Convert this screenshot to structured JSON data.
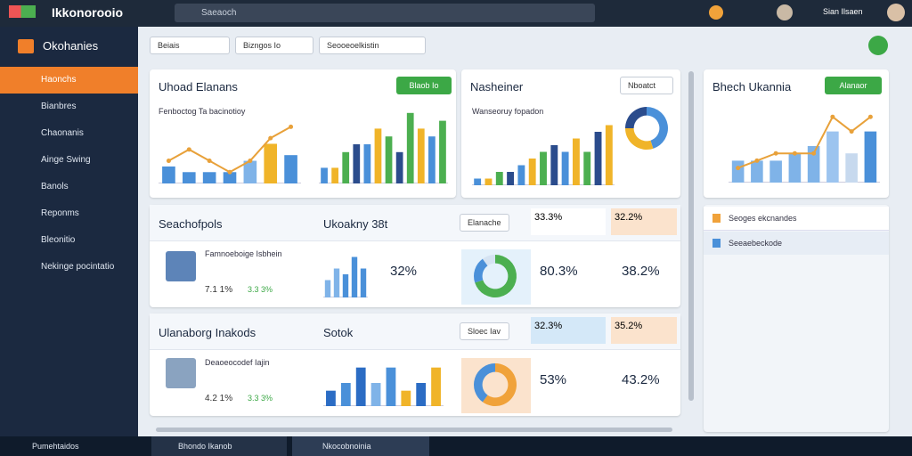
{
  "header": {
    "logo": "Ikkonorooio",
    "search": "Saeaoch",
    "user": "Sian Ilsaen"
  },
  "sidebar": {
    "title": "Okohanies",
    "items": [
      "Haonchs",
      "Bianbres",
      "Chaonanis",
      "Ainge Swing",
      "Banols",
      "Reponms",
      "Bleonitio",
      "Nekinge pocintatio"
    ]
  },
  "filters": [
    "Beiais",
    "Bizngos Io",
    "Seooeoelkistin"
  ],
  "cards": [
    {
      "title": "Uhoad Elanans",
      "button": "Blaob Io",
      "subtitle": "Fenboctog Ta bacinotioy",
      "chart": {
        "type": "bar",
        "ylim": [
          0,
          11
        ],
        "values": [
          3,
          2,
          2,
          2,
          4,
          7,
          5
        ],
        "colors": [
          "#4a90d9",
          "#4a90d9",
          "#4a90d9",
          "#4a90d9",
          "#7fb3e8",
          "#f0b429",
          "#4a90d9"
        ],
        "line": {
          "color": "#e8a13a",
          "values": [
            4,
            6,
            4,
            2,
            4,
            8,
            10
          ]
        }
      },
      "chart2": {
        "type": "bar",
        "ylim": [
          0,
          10
        ],
        "values": [
          2,
          2,
          4,
          5,
          5,
          7,
          6,
          4,
          9,
          7,
          6,
          8
        ],
        "colors": [
          "#4a90d9",
          "#f0b429",
          "#4caf50",
          "#2b4c8c",
          "#4a90d9",
          "#f0b429",
          "#4caf50",
          "#2b4c8c",
          "#4caf50",
          "#f0b429",
          "#4a90d9",
          "#4caf50"
        ]
      }
    },
    {
      "title": "Nasheiner",
      "button": "Nboatct",
      "subtitle": "Wanseoruy fopadon",
      "chart": {
        "type": "bar",
        "ylim": [
          0,
          10
        ],
        "values": [
          1,
          1,
          2,
          2,
          3,
          4,
          5,
          6,
          5,
          7,
          5,
          8,
          9
        ],
        "colors": [
          "#4a90d9",
          "#f0b429",
          "#4caf50",
          "#2b4c8c",
          "#4a90d9",
          "#f0b429",
          "#4caf50",
          "#2b4c8c",
          "#4a90d9",
          "#f0b429",
          "#4caf50",
          "#2b4c8c",
          "#f0b429"
        ]
      },
      "chart2": {
        "type": "pie",
        "values": [
          45,
          30,
          25
        ],
        "colors": [
          "#4a90d9",
          "#f0b429",
          "#2b4c8c"
        ]
      }
    },
    {
      "title": "Bhech Ukannia",
      "button": "Alanaor",
      "chart": {
        "type": "bar",
        "ylim": [
          0,
          10
        ],
        "values": [
          3,
          3,
          3,
          4,
          5,
          7,
          4,
          7
        ],
        "colors": [
          "#7fb3e8",
          "#7fb3e8",
          "#7fb3e8",
          "#7fb3e8",
          "#7fb3e8",
          "#9cc4ef",
          "#c7d9ee",
          "#4a90d9"
        ],
        "line": {
          "color": "#e8a13a",
          "values": [
            2,
            3,
            4,
            4,
            4,
            9,
            7,
            9
          ]
        }
      }
    }
  ],
  "rows": [
    {
      "title": "Seachofpols",
      "title2": "Ukoakny 38t",
      "button": "Elanache",
      "stat1": "33.3%",
      "stat2": "32.2%",
      "item": "Famnoeboige Isbhein",
      "item_a": "7.1 1%",
      "item_b": "3.3 3%",
      "pct1": "32%",
      "pct2": "80.3%",
      "pct3": "38.2%",
      "chart": {
        "type": "bar",
        "ylim": [
          0,
          8
        ],
        "values": [
          3,
          5,
          4,
          7,
          5
        ],
        "colors": [
          "#7fb3e8",
          "#7fb3e8",
          "#4a90d9",
          "#4a90d9",
          "#4a90d9"
        ]
      },
      "chart2": {
        "type": "pie",
        "values": [
          70,
          20,
          10
        ],
        "colors": [
          "#4caf50",
          "#4a90d9",
          "#d5e3f2"
        ]
      }
    },
    {
      "title": "Ulanaborg Inakods",
      "title2": "Sotok",
      "button": "Sloec Iav",
      "stat1": "32.3%",
      "stat2": "35.2%",
      "item": "Deaoeocodef Iajin",
      "item_a": "4.2 1%",
      "item_b": "3.3 3%",
      "pct2": "53%",
      "pct3": "43.2%",
      "chart": {
        "type": "bar",
        "ylim": [
          0,
          6
        ],
        "values": [
          2,
          3,
          5,
          3,
          5,
          2,
          3,
          5
        ],
        "colors": [
          "#2b6cc4",
          "#4a90d9",
          "#2b6cc4",
          "#7fb3e8",
          "#4a90d9",
          "#f0b429",
          "#2b6cc4",
          "#f0b429"
        ]
      },
      "chart2": {
        "type": "pie",
        "values": [
          60,
          40
        ],
        "colors": [
          "#f0a23a",
          "#4a90d9"
        ]
      }
    }
  ],
  "accordion": [
    "Seoges ekcnandes",
    "Seeaebeckode"
  ],
  "taskbar": [
    "Pumehtaidos",
    "Bhondo Ikanob",
    "Nkocobnoinia"
  ]
}
